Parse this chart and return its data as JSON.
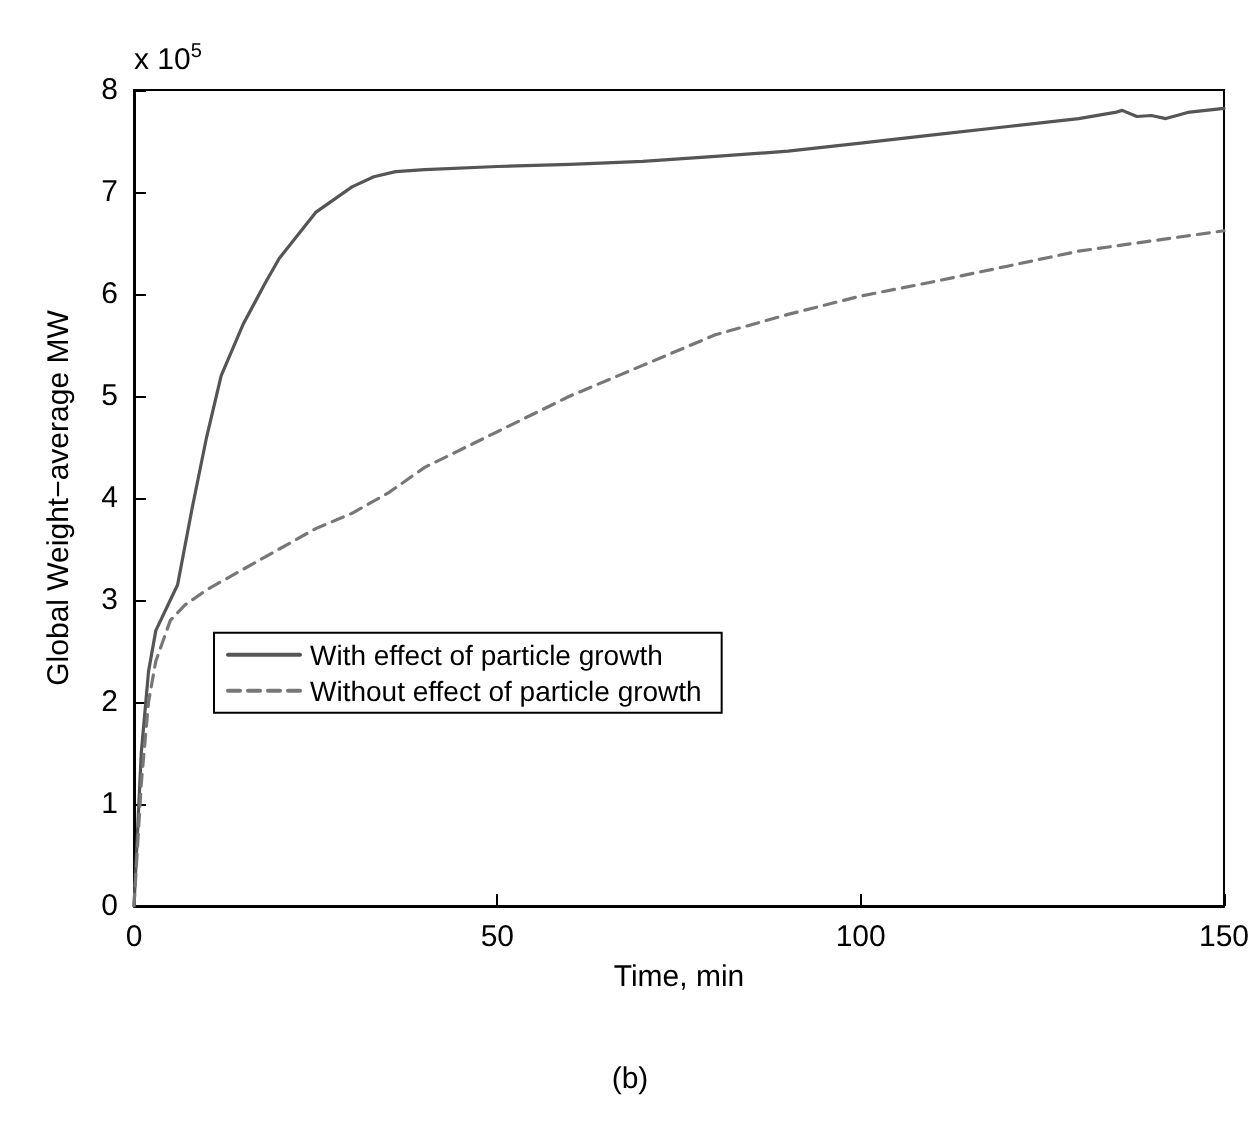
{
  "chart_data": {
    "type": "line",
    "xlabel": "Time, min",
    "ylabel": "Global Weight−average MW",
    "annotations": [
      "x 10$^{5}$",
      "(b)"
    ],
    "xlim": [
      0,
      150
    ],
    "xticks": [
      0,
      50,
      100,
      150
    ],
    "ylim": [
      0,
      8
    ],
    "yticks": [
      0,
      1,
      2,
      3,
      4,
      5,
      6,
      7,
      8
    ],
    "grid": false,
    "legend": "center left",
    "marker": "none",
    "series": [
      {
        "name": "With effect of particle growth",
        "color": "#555555",
        "line_style": "solid",
        "x": [
          0,
          1,
          2,
          3,
          5,
          6,
          8,
          10,
          12,
          15,
          18,
          20,
          25,
          30,
          33,
          36,
          40,
          50,
          60,
          70,
          80,
          90,
          100,
          110,
          120,
          130,
          135,
          136,
          138,
          140,
          142,
          145,
          150
        ],
        "values": [
          0,
          1.5,
          2.3,
          2.7,
          3.0,
          3.15,
          3.9,
          4.6,
          5.2,
          5.7,
          6.1,
          6.35,
          6.8,
          7.05,
          7.15,
          7.2,
          7.22,
          7.25,
          7.27,
          7.3,
          7.35,
          7.4,
          7.48,
          7.56,
          7.64,
          7.72,
          7.78,
          7.8,
          7.74,
          7.75,
          7.72,
          7.78,
          7.82
        ]
      },
      {
        "name": "Without effect of particle growth",
        "color": "#777777",
        "line_style": "dashed",
        "x": [
          0,
          1,
          2,
          3,
          4,
          5,
          7,
          10,
          15,
          20,
          25,
          30,
          35,
          40,
          50,
          60,
          70,
          80,
          90,
          100,
          110,
          120,
          130,
          140,
          150
        ],
        "values": [
          0,
          1.2,
          2.0,
          2.4,
          2.6,
          2.8,
          2.95,
          3.1,
          3.3,
          3.5,
          3.7,
          3.85,
          4.05,
          4.3,
          4.65,
          5.0,
          5.3,
          5.6,
          5.8,
          5.98,
          6.12,
          6.27,
          6.42,
          6.52,
          6.62
        ]
      }
    ]
  }
}
